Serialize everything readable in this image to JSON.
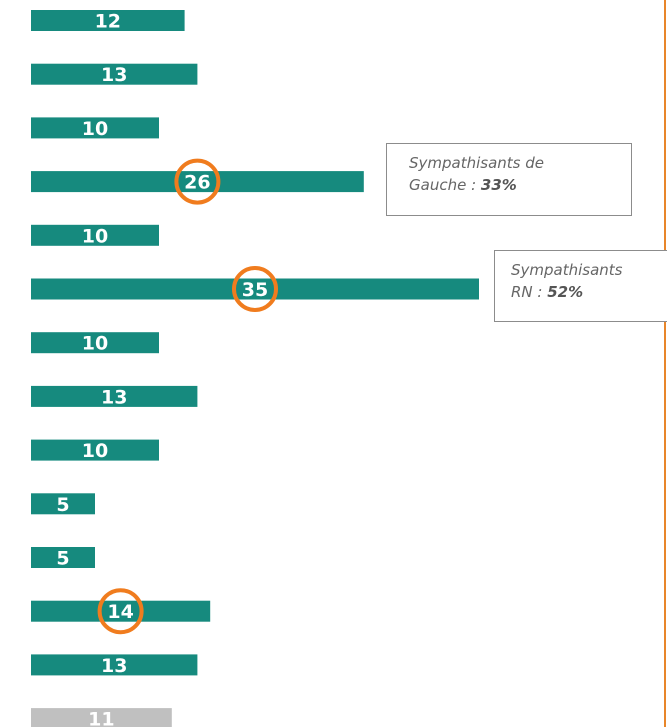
{
  "chart_data": {
    "type": "bar",
    "orientation": "horizontal",
    "values": [
      12,
      13,
      10,
      26,
      10,
      35,
      10,
      13,
      10,
      5,
      5,
      14,
      13,
      11
    ],
    "bar_colors": [
      "#168a7e",
      "#168a7e",
      "#168a7e",
      "#168a7e",
      "#168a7e",
      "#168a7e",
      "#168a7e",
      "#168a7e",
      "#168a7e",
      "#168a7e",
      "#168a7e",
      "#168a7e",
      "#168a7e",
      "#c0c0c0"
    ],
    "highlighted_indices": [
      3,
      5,
      11
    ],
    "highlight_color": "#f07c1e",
    "xlim": [
      0,
      35
    ]
  },
  "annotations": {
    "gauche": {
      "line1": "Sympathisants de",
      "line2_prefix": "Gauche : ",
      "value": "33%"
    },
    "rn": {
      "line1": "Sympathisants",
      "line2_prefix": "RN : ",
      "value": "52%"
    }
  },
  "colors": {
    "accent_line": "#e8862a"
  }
}
